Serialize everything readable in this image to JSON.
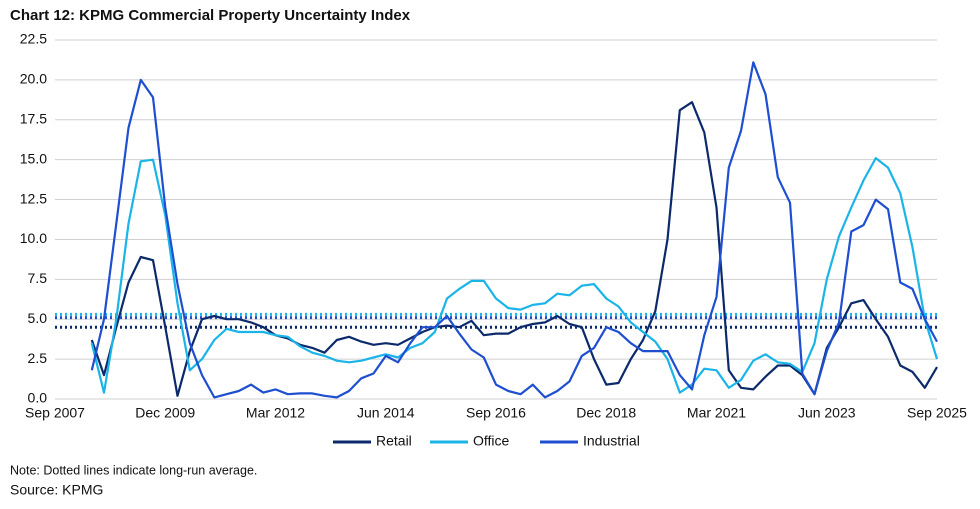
{
  "chart_data": {
    "type": "line",
    "title": "Chart 12: KPMG Commercial Property Uncertainty Index",
    "note": "Note: Dotted lines indicate long-run average.",
    "source": "Source: KPMG",
    "categories": [
      "Sep 2007",
      null,
      null,
      null,
      null,
      null,
      null,
      null,
      null,
      "Dec 2009",
      null,
      null,
      null,
      null,
      null,
      null,
      null,
      null,
      "Mar 2012",
      null,
      null,
      null,
      null,
      null,
      null,
      null,
      null,
      "Jun 2014",
      null,
      null,
      null,
      null,
      null,
      null,
      null,
      null,
      "Sep 2016",
      null,
      null,
      null,
      null,
      null,
      null,
      null,
      null,
      "Dec 2018",
      null,
      null,
      null,
      null,
      null,
      null,
      null,
      null,
      "Mar 2021",
      null,
      null,
      null,
      null,
      null,
      null,
      null,
      null,
      "Jun 2023",
      null,
      null,
      null,
      null,
      null,
      null,
      null,
      null,
      "Sep 2025"
    ],
    "series": [
      {
        "name": "Retail",
        "color": "#0c2a6b",
        "average": 4.5,
        "values": [
          null,
          null,
          null,
          3.7,
          1.5,
          4.5,
          7.3,
          8.9,
          8.7,
          4.5,
          0.2,
          3.0,
          5.0,
          5.2,
          5.0,
          5.0,
          4.8,
          4.5,
          4.0,
          3.8,
          3.4,
          3.2,
          2.9,
          3.7,
          3.9,
          3.6,
          3.4,
          3.5,
          3.4,
          3.8,
          4.2,
          4.5,
          4.6,
          4.5,
          4.9,
          4.0,
          4.1,
          4.1,
          4.5,
          4.7,
          4.8,
          5.2,
          4.7,
          4.5,
          2.5,
          0.9,
          1.0,
          2.5,
          3.7,
          5.5,
          10.0,
          18.1,
          18.6,
          16.7,
          12.0,
          1.8,
          0.7,
          0.6,
          1.4,
          2.1,
          2.1,
          1.5,
          0.3,
          3.2,
          4.5,
          6.0,
          6.2,
          5.0,
          3.9,
          2.1,
          1.7,
          0.7,
          2.0
        ]
      },
      {
        "name": "Office",
        "color": "#1ab4e8",
        "average": 5.3,
        "values": [
          null,
          null,
          null,
          3.5,
          0.4,
          5,
          11,
          14.9,
          15.0,
          11.5,
          6,
          1.8,
          2.5,
          3.7,
          4.4,
          4.2,
          4.2,
          4.2,
          4.0,
          3.9,
          3.3,
          2.9,
          2.7,
          2.4,
          2.3,
          2.4,
          2.6,
          2.8,
          2.6,
          3.2,
          3.5,
          4.2,
          6.3,
          6.9,
          7.4,
          7.4,
          6.3,
          5.7,
          5.6,
          5.9,
          6.0,
          6.6,
          6.5,
          7.1,
          7.2,
          6.3,
          5.8,
          4.8,
          4.2,
          3.6,
          2.5,
          0.4,
          0.9,
          1.9,
          1.8,
          0.7,
          1.2,
          2.4,
          2.8,
          2.3,
          2.2,
          1.7,
          3.5,
          7.5,
          10.2,
          12.0,
          13.7,
          15.1,
          14.5,
          12.9,
          9.5,
          5.0,
          2.5
        ]
      },
      {
        "name": "Industrial",
        "color": "#1e4fd0",
        "average": 5.1,
        "values": [
          null,
          null,
          null,
          1.8,
          5,
          11,
          17,
          20,
          18.9,
          12,
          7.2,
          3.5,
          1.5,
          0.1,
          0.3,
          0.5,
          0.9,
          0.4,
          0.6,
          0.3,
          0.35,
          0.35,
          0.2,
          0.1,
          0.5,
          1.3,
          1.6,
          2.7,
          2.3,
          3.5,
          4.5,
          4.5,
          5.2,
          4.1,
          3.1,
          2.6,
          0.9,
          0.5,
          0.3,
          0.9,
          0.1,
          0.5,
          1.1,
          2.7,
          3.2,
          4.5,
          4.2,
          3.5,
          3.0,
          3.0,
          3.0,
          1.5,
          0.6,
          4.0,
          6.4,
          14.5,
          16.8,
          21.1,
          19.1,
          13.9,
          12.3,
          1.6,
          0.3,
          3.0,
          4.8,
          10.5,
          10.9,
          12.5,
          11.9,
          7.3,
          6.9,
          5.0,
          3.6
        ]
      }
    ],
    "ylim": [
      0,
      22.5
    ],
    "yticks": [
      {
        "value": 0,
        "label": "0.0"
      },
      2.5,
      {
        "value": 5,
        "label": "5.0"
      },
      7.5,
      {
        "value": 10,
        "label": "10.0"
      },
      12.5,
      {
        "value": 15,
        "label": "15.0"
      },
      17.5,
      {
        "value": 20,
        "label": "20.0"
      },
      22.5
    ],
    "grid": true,
    "legend": "bottom"
  }
}
